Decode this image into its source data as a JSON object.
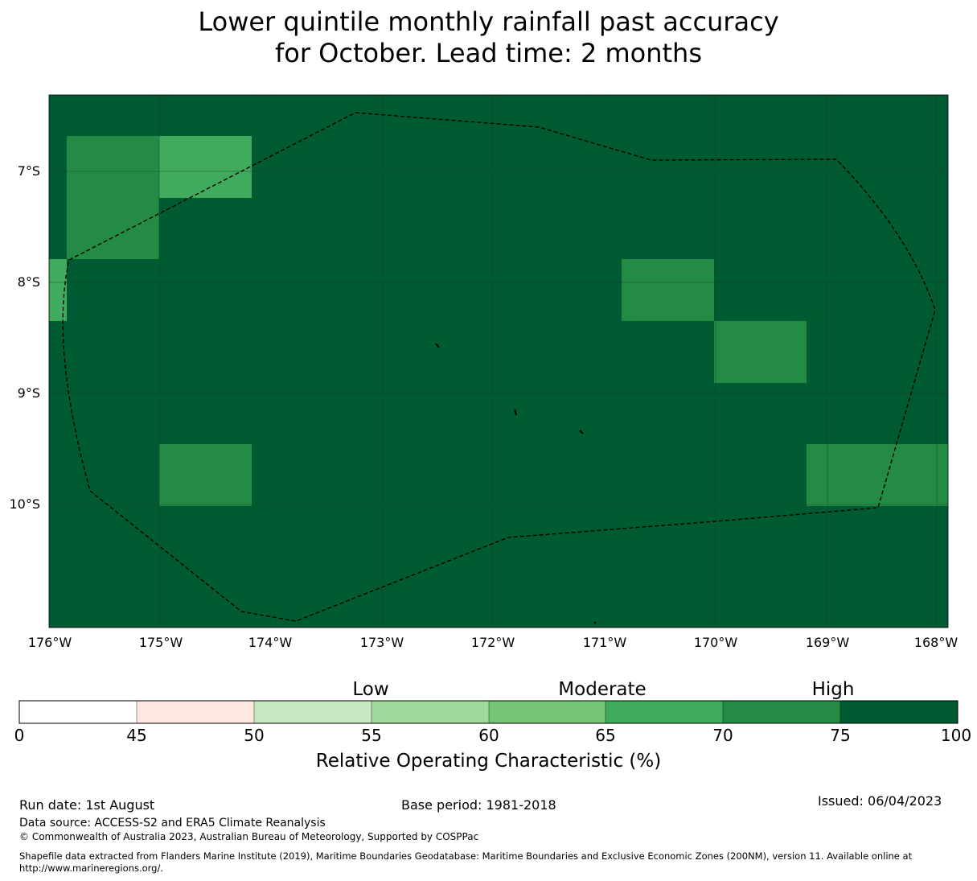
{
  "title": {
    "line1": "Lower quintile monthly rainfall past accuracy",
    "line2": "for October. Lead time: 2 months"
  },
  "map": {
    "lat_labels": [
      "7°S",
      "8°S",
      "9°S",
      "10°S"
    ],
    "lon_labels": [
      "176°W",
      "175°W",
      "174°W",
      "173°W",
      "172°W",
      "171°W",
      "170°W",
      "169°W",
      "168°W"
    ],
    "base_value_pct": "75-100",
    "highlight_cells": [
      {
        "lon_range": "175.8°W-175.0°W",
        "lat_range": "6.7°S-7.8°S",
        "bin": "70-75"
      },
      {
        "lon_range": "175.0°W-174.2°W",
        "lat_range": "6.7°S-7.2°S",
        "bin": "65-70"
      },
      {
        "lon_range": "176.0°W-175.8°W",
        "lat_range": "7.8°S-8.3°S",
        "bin": "65-70"
      },
      {
        "lon_range": "170.8°W-170.0°W",
        "lat_range": "7.8°S-8.3°S",
        "bin": "70-75"
      },
      {
        "lon_range": "170.0°W-169.2°W",
        "lat_range": "8.3°S-8.9°S",
        "bin": "70-75"
      },
      {
        "lon_range": "175.0°W-174.2°W",
        "lat_range": "9.4°S-10.0°S",
        "bin": "70-75"
      },
      {
        "lon_range": "169.2°W-168.0°W",
        "lat_range": "9.4°S-10.0°S",
        "bin": "70-75"
      }
    ],
    "boundary_style": "dashed black line (EEZ)"
  },
  "colorbar": {
    "category_labels": [
      "Low",
      "Moderate",
      "High"
    ],
    "ticks": [
      "0",
      "45",
      "50",
      "55",
      "60",
      "65",
      "70",
      "75",
      "100"
    ],
    "colors": [
      "#ffffff",
      "#fee8df",
      "#c7e9c0",
      "#a1d99b",
      "#74c476",
      "#41ab5d",
      "#238b45",
      "#005a32"
    ],
    "xlabel": "Relative Operating Characteristic (%)"
  },
  "footer": {
    "run_date": "Run date: 1st August",
    "base_period": "Base period: 1981-2018",
    "issued": "Issued: 06/04/2023",
    "data_source": "Data source: ACCESS-S2 and ERA5 Climate Reanalysis",
    "copyright": "© Commonwealth of Australia 2023, Australian Bureau of Meteorology, Supported by COSPPac",
    "shapefile": "Shapefile data extracted from Flanders Marine Institute (2019), Maritime Boundaries Geodatabase: Maritime Boundaries and Exclusive Economic Zones (200NM), version 11. Available online at http://www.marineregions.org/."
  }
}
